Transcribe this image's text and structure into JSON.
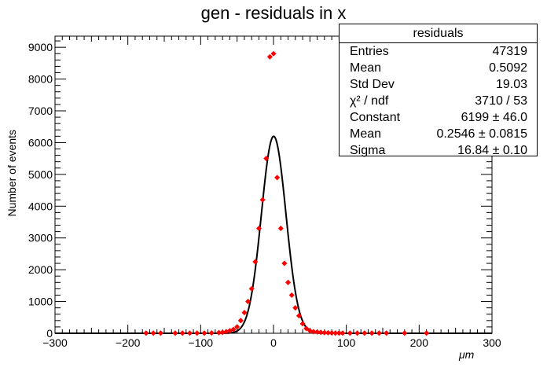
{
  "chart_data": {
    "type": "scatter",
    "title": "gen - residuals in x",
    "xlabel": "μm",
    "ylabel": "Number of events",
    "xlim": [
      -300,
      300
    ],
    "ylim": [
      0,
      9350
    ],
    "x_ticks": [
      -300,
      -200,
      -100,
      0,
      100,
      200,
      300
    ],
    "x_tick_labels": [
      "−300",
      "−200",
      "−100",
      "0",
      "100",
      "200",
      "300"
    ],
    "y_ticks": [
      0,
      1000,
      2000,
      3000,
      4000,
      5000,
      6000,
      7000,
      8000,
      9000
    ],
    "y_tick_labels": [
      "0",
      "1000",
      "2000",
      "3000",
      "4000",
      "5000",
      "6000",
      "7000",
      "8000",
      "9000"
    ],
    "series": [
      {
        "marker_color": "#ff0000",
        "x": [
          -175,
          -165,
          -155,
          -135,
          -125,
          -115,
          -105,
          -95,
          -85,
          -75,
          -70,
          -65,
          -60,
          -55,
          -50,
          -45,
          -40,
          -35,
          -30,
          -25,
          -20,
          -15,
          -10,
          -5,
          0,
          5,
          10,
          15,
          20,
          25,
          30,
          35,
          40,
          45,
          50,
          55,
          60,
          65,
          70,
          75,
          80,
          85,
          90,
          95,
          105,
          115,
          125,
          135,
          145,
          155,
          180,
          210
        ],
        "y": [
          5,
          5,
          5,
          5,
          5,
          5,
          5,
          5,
          10,
          20,
          30,
          50,
          80,
          120,
          200,
          400,
          650,
          1000,
          1400,
          2250,
          3300,
          4200,
          5500,
          8700,
          8800,
          4900,
          3300,
          2200,
          1600,
          1200,
          800,
          550,
          300,
          150,
          80,
          50,
          40,
          30,
          20,
          15,
          10,
          5,
          5,
          5,
          5,
          5,
          5,
          5,
          5,
          5,
          5,
          5
        ]
      }
    ],
    "fit": {
      "type": "gaussian",
      "line_color": "#000000",
      "constant": 6199,
      "mean": 0.2546,
      "sigma": 16.84
    }
  },
  "statbox": {
    "title": "residuals",
    "rows": [
      {
        "label": "Entries",
        "value": "47319"
      },
      {
        "label": "Mean",
        "value": "0.5092"
      },
      {
        "label": "Std Dev",
        "value": "19.03"
      },
      {
        "label": "χ² / ndf",
        "value": "3710 / 53"
      },
      {
        "label": "Constant",
        "value": "6199 ± 46.0"
      },
      {
        "label": "Mean",
        "value": "0.2546 ± 0.0815"
      },
      {
        "label": "Sigma",
        "value": "16.84 ± 0.10"
      }
    ]
  }
}
